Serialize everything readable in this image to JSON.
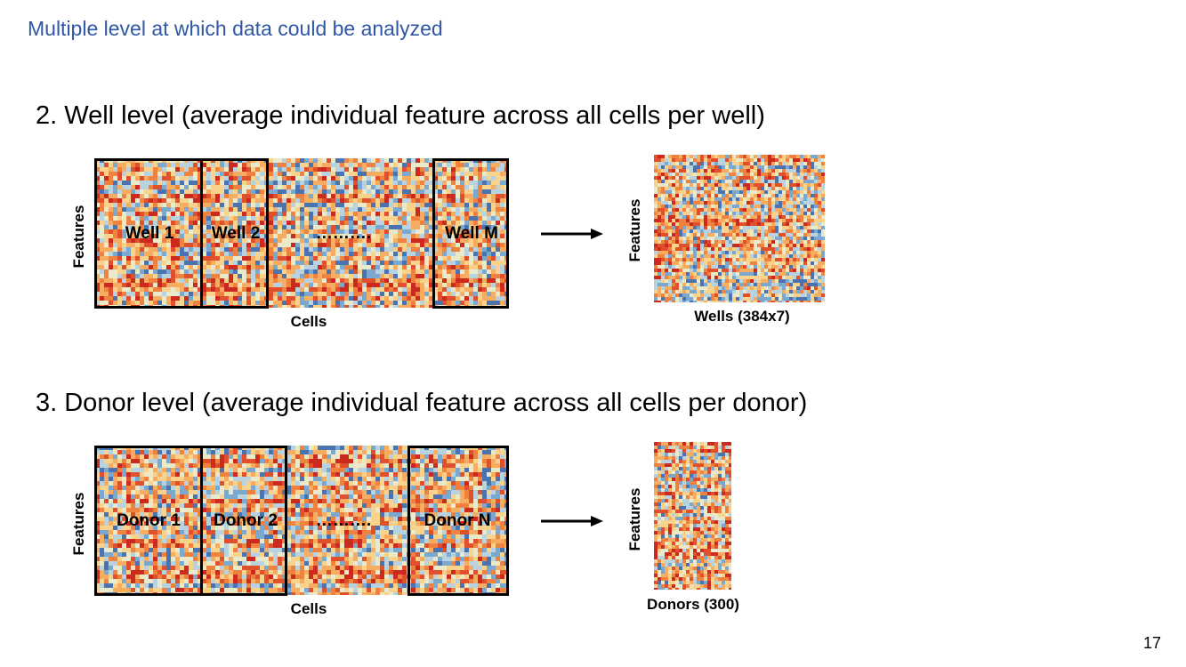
{
  "header": {
    "title": "Multiple level at which data could be analyzed"
  },
  "section_well": {
    "heading": "2. Well level (average individual feature across all cells per well)",
    "y_label": "Features",
    "x_label": "Cells",
    "groups": [
      "Well 1",
      "Well 2",
      "Well M"
    ],
    "ellipsis": "……….",
    "arrow": "right-arrow",
    "result": {
      "y_label": "Features",
      "x_label": "Wells (384x7)"
    }
  },
  "section_donor": {
    "heading": "3. Donor level (average individual feature across all cells per donor)",
    "y_label": "Features",
    "x_label": "Cells",
    "groups": [
      "Donor 1",
      "Donor 2",
      "Donor N"
    ],
    "ellipsis": "……….",
    "arrow": "right-arrow",
    "result": {
      "y_label": "Features",
      "x_label": "Donors (300)"
    }
  },
  "heatmap_colors": [
    "#cc2a1e",
    "#e0502c",
    "#f0823f",
    "#f6ad62",
    "#f9d38c",
    "#eaeaca",
    "#b8d3df",
    "#7aa8cf",
    "#4a73b0"
  ],
  "page_number": "17"
}
